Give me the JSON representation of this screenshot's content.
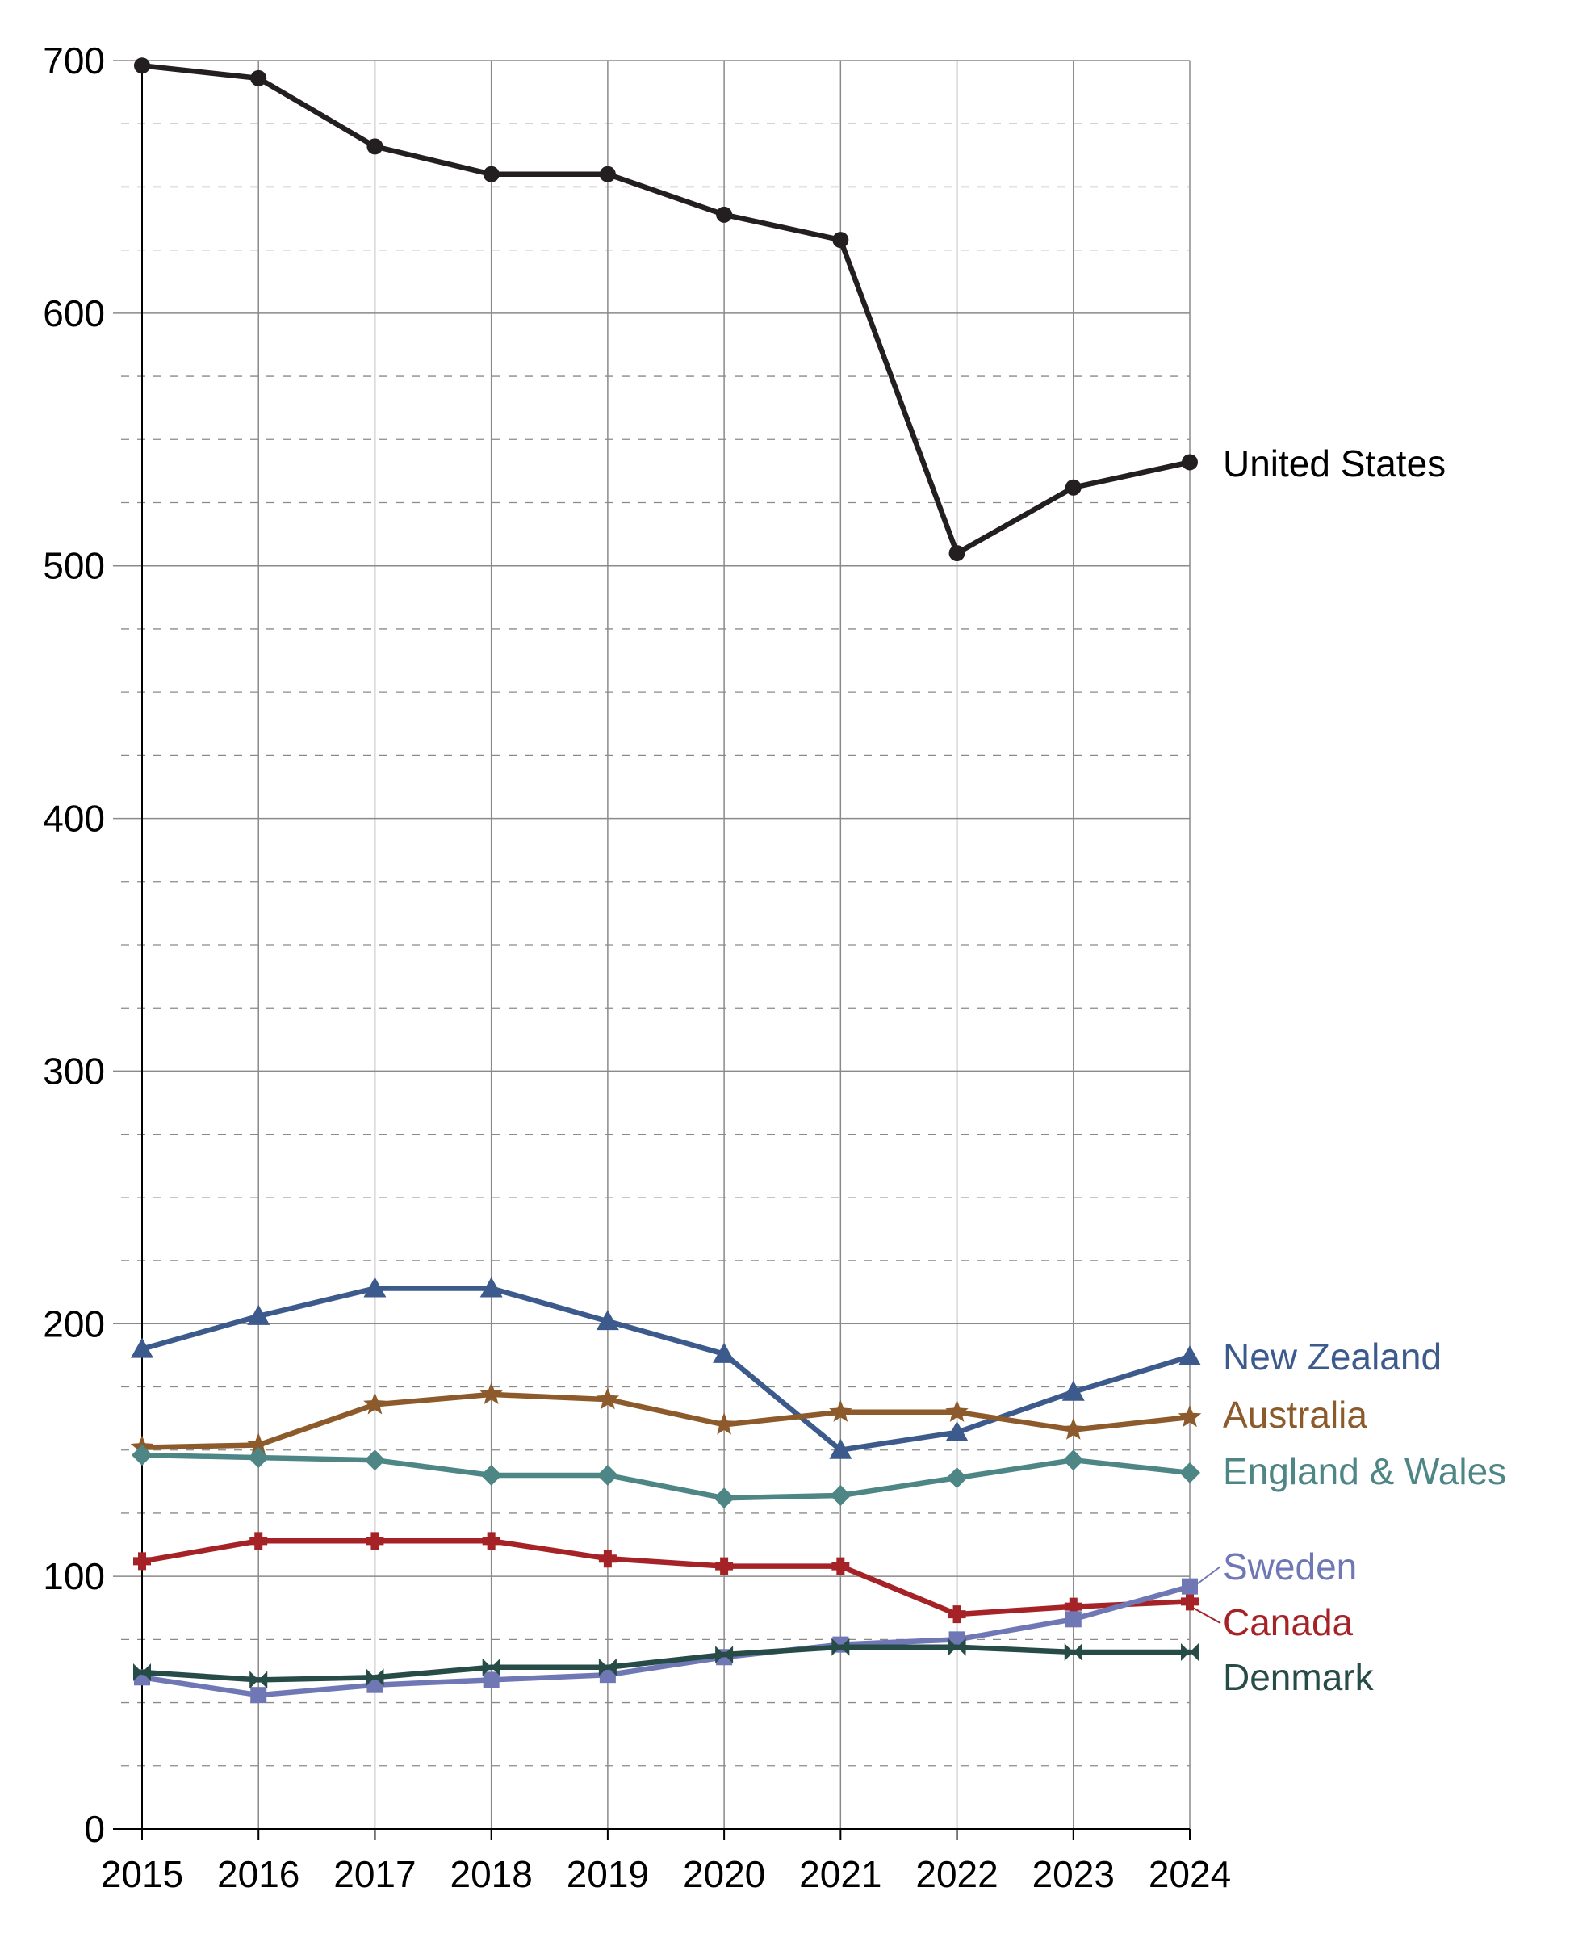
{
  "chart_data": {
    "type": "line",
    "title": "",
    "xlabel": "",
    "ylabel": "",
    "x": [
      "2015",
      "2016",
      "2017",
      "2018",
      "2019",
      "2020",
      "2021",
      "2022",
      "2023",
      "2024"
    ],
    "ylim": [
      0,
      700
    ],
    "y_major_ticks": [
      0,
      100,
      200,
      300,
      400,
      500,
      600,
      700
    ],
    "y_minor_step": 25,
    "grid": "major solid, minor dashed",
    "legend": "direct labels at right end of lines",
    "series": [
      {
        "name": "United States",
        "color": "#231f20",
        "marker": "circle",
        "values": [
          698,
          693,
          666,
          655,
          655,
          639,
          629,
          505,
          531,
          541
        ]
      },
      {
        "name": "New Zealand",
        "color": "#3d5a8c",
        "marker": "triangle",
        "values": [
          190,
          203,
          214,
          214,
          201,
          188,
          150,
          157,
          173,
          187
        ]
      },
      {
        "name": "Australia",
        "color": "#8c5a2b",
        "marker": "star",
        "values": [
          151,
          152,
          168,
          172,
          170,
          160,
          165,
          165,
          158,
          163
        ]
      },
      {
        "name": "England & Wales",
        "color": "#4e8585",
        "marker": "diamond",
        "values": [
          148,
          147,
          146,
          140,
          140,
          131,
          132,
          139,
          146,
          141
        ]
      },
      {
        "name": "Canada",
        "color": "#a52226",
        "marker": "plus",
        "values": [
          106,
          114,
          114,
          114,
          107,
          104,
          104,
          85,
          88,
          90
        ]
      },
      {
        "name": "Sweden",
        "color": "#6f78b5",
        "marker": "square",
        "values": [
          60,
          53,
          57,
          59,
          61,
          68,
          73,
          75,
          83,
          96
        ]
      },
      {
        "name": "Denmark",
        "color": "#274b47",
        "marker": "bowtie",
        "values": [
          62,
          59,
          60,
          64,
          64,
          69,
          72,
          72,
          70,
          70
        ]
      }
    ]
  }
}
